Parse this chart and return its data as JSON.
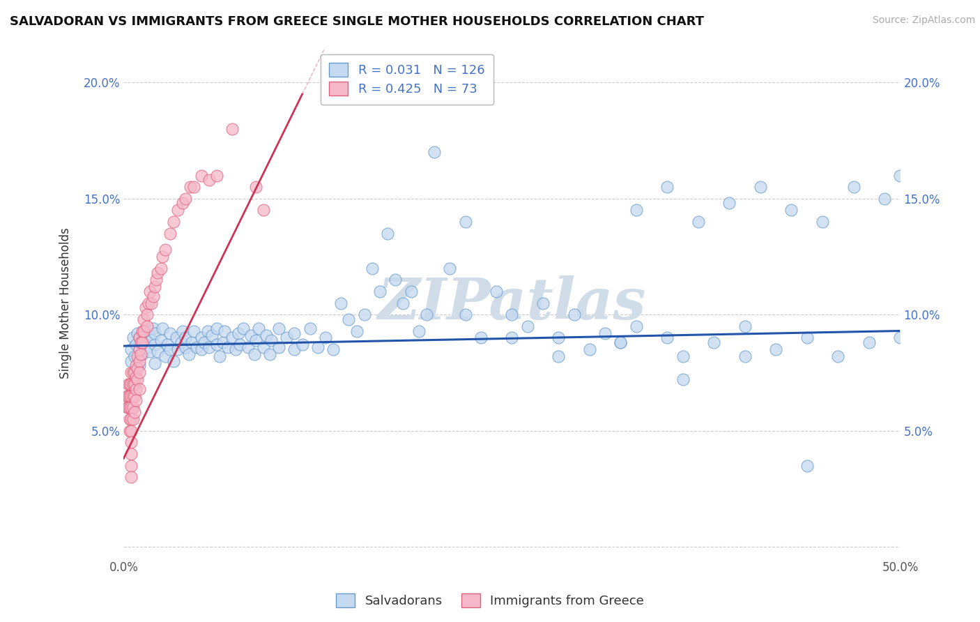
{
  "title": "SALVADORAN VS IMMIGRANTS FROM GREECE SINGLE MOTHER HOUSEHOLDS CORRELATION CHART",
  "source": "Source: ZipAtlas.com",
  "ylabel": "Single Mother Households",
  "xlim": [
    0.0,
    0.5
  ],
  "ylim": [
    -0.005,
    0.215
  ],
  "blue_R": 0.031,
  "blue_N": 126,
  "pink_R": 0.425,
  "pink_N": 73,
  "blue_color": "#c5d9f0",
  "pink_color": "#f5b8c8",
  "blue_edge_color": "#6699cc",
  "pink_edge_color": "#e06080",
  "blue_line_color": "#2255aa",
  "pink_line_color": "#cc3355",
  "watermark": "ZIPatlas",
  "watermark_color": "#d0dde8",
  "legend_label_blue": "Salvadorans",
  "legend_label_pink": "Immigrants from Greece",
  "blue_trend_x": [
    0.0,
    0.5
  ],
  "blue_trend_y": [
    0.0865,
    0.093
  ],
  "pink_trend_x": [
    0.0,
    0.115
  ],
  "pink_trend_y": [
    0.038,
    0.195
  ],
  "blue_scatter_x": [
    0.005,
    0.005,
    0.006,
    0.007,
    0.008,
    0.009,
    0.01,
    0.01,
    0.01,
    0.012,
    0.013,
    0.014,
    0.015,
    0.016,
    0.017,
    0.018,
    0.019,
    0.02,
    0.02,
    0.02,
    0.022,
    0.024,
    0.025,
    0.027,
    0.028,
    0.03,
    0.03,
    0.032,
    0.034,
    0.035,
    0.037,
    0.038,
    0.04,
    0.04,
    0.042,
    0.044,
    0.045,
    0.047,
    0.05,
    0.05,
    0.052,
    0.054,
    0.055,
    0.057,
    0.06,
    0.06,
    0.062,
    0.064,
    0.065,
    0.067,
    0.07,
    0.072,
    0.074,
    0.075,
    0.077,
    0.08,
    0.082,
    0.084,
    0.085,
    0.087,
    0.09,
    0.092,
    0.094,
    0.095,
    0.1,
    0.1,
    0.105,
    0.11,
    0.11,
    0.115,
    0.12,
    0.125,
    0.13,
    0.135,
    0.14,
    0.145,
    0.15,
    0.155,
    0.16,
    0.165,
    0.17,
    0.175,
    0.18,
    0.185,
    0.19,
    0.195,
    0.2,
    0.21,
    0.22,
    0.23,
    0.24,
    0.25,
    0.26,
    0.27,
    0.28,
    0.29,
    0.3,
    0.31,
    0.32,
    0.33,
    0.35,
    0.36,
    0.38,
    0.4,
    0.42,
    0.44,
    0.46,
    0.48,
    0.5,
    0.33,
    0.35,
    0.37,
    0.39,
    0.41,
    0.43,
    0.45,
    0.47,
    0.49,
    0.5,
    0.22,
    0.25,
    0.28,
    0.32,
    0.36,
    0.4,
    0.44
  ],
  "blue_scatter_y": [
    0.08,
    0.085,
    0.09,
    0.082,
    0.087,
    0.092,
    0.085,
    0.09,
    0.078,
    0.083,
    0.088,
    0.093,
    0.086,
    0.091,
    0.084,
    0.089,
    0.094,
    0.087,
    0.092,
    0.079,
    0.084,
    0.089,
    0.094,
    0.082,
    0.087,
    0.092,
    0.085,
    0.08,
    0.09,
    0.085,
    0.088,
    0.093,
    0.086,
    0.09,
    0.083,
    0.088,
    0.093,
    0.086,
    0.09,
    0.085,
    0.088,
    0.093,
    0.086,
    0.091,
    0.094,
    0.087,
    0.082,
    0.088,
    0.093,
    0.086,
    0.09,
    0.085,
    0.092,
    0.087,
    0.094,
    0.086,
    0.091,
    0.083,
    0.089,
    0.094,
    0.086,
    0.091,
    0.083,
    0.089,
    0.094,
    0.086,
    0.09,
    0.085,
    0.092,
    0.087,
    0.094,
    0.086,
    0.09,
    0.085,
    0.105,
    0.098,
    0.093,
    0.1,
    0.12,
    0.11,
    0.135,
    0.115,
    0.105,
    0.11,
    0.093,
    0.1,
    0.17,
    0.12,
    0.1,
    0.09,
    0.11,
    0.09,
    0.095,
    0.105,
    0.09,
    0.1,
    0.085,
    0.092,
    0.088,
    0.095,
    0.09,
    0.082,
    0.088,
    0.095,
    0.085,
    0.09,
    0.082,
    0.088,
    0.09,
    0.145,
    0.155,
    0.14,
    0.148,
    0.155,
    0.145,
    0.14,
    0.155,
    0.15,
    0.16,
    0.14,
    0.1,
    0.082,
    0.088,
    0.072,
    0.082,
    0.035
  ],
  "pink_scatter_x": [
    0.002,
    0.002,
    0.003,
    0.003,
    0.003,
    0.004,
    0.004,
    0.004,
    0.004,
    0.004,
    0.005,
    0.005,
    0.005,
    0.005,
    0.005,
    0.005,
    0.005,
    0.005,
    0.005,
    0.005,
    0.006,
    0.006,
    0.006,
    0.006,
    0.006,
    0.007,
    0.007,
    0.007,
    0.007,
    0.008,
    0.008,
    0.008,
    0.008,
    0.009,
    0.009,
    0.009,
    0.01,
    0.01,
    0.01,
    0.01,
    0.01,
    0.011,
    0.011,
    0.012,
    0.012,
    0.013,
    0.013,
    0.014,
    0.015,
    0.015,
    0.016,
    0.017,
    0.018,
    0.019,
    0.02,
    0.021,
    0.022,
    0.024,
    0.025,
    0.027,
    0.03,
    0.032,
    0.035,
    0.038,
    0.04,
    0.043,
    0.045,
    0.05,
    0.055,
    0.06,
    0.07,
    0.085,
    0.09
  ],
  "pink_scatter_y": [
    0.065,
    0.06,
    0.07,
    0.065,
    0.06,
    0.07,
    0.065,
    0.06,
    0.055,
    0.05,
    0.075,
    0.07,
    0.065,
    0.06,
    0.055,
    0.05,
    0.045,
    0.04,
    0.035,
    0.03,
    0.075,
    0.07,
    0.065,
    0.06,
    0.055,
    0.075,
    0.07,
    0.065,
    0.058,
    0.078,
    0.073,
    0.068,
    0.063,
    0.082,
    0.077,
    0.072,
    0.09,
    0.085,
    0.08,
    0.075,
    0.068,
    0.088,
    0.083,
    0.093,
    0.088,
    0.098,
    0.093,
    0.103,
    0.1,
    0.095,
    0.105,
    0.11,
    0.105,
    0.108,
    0.112,
    0.115,
    0.118,
    0.12,
    0.125,
    0.128,
    0.135,
    0.14,
    0.145,
    0.148,
    0.15,
    0.155,
    0.155,
    0.16,
    0.158,
    0.16,
    0.18,
    0.155,
    0.145
  ]
}
